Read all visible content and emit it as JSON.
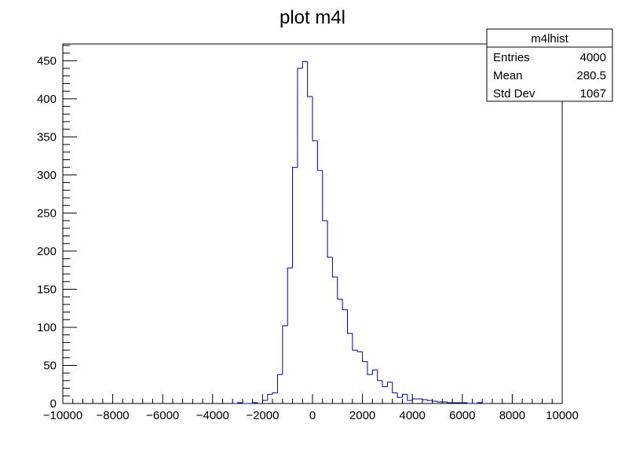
{
  "chart_data": {
    "type": "bar",
    "style": "step-histogram",
    "title": "plot m4l",
    "xlabel": "",
    "ylabel": "",
    "xlim": [
      -10000,
      10000
    ],
    "ylim": [
      0,
      472
    ],
    "bin_width": 200,
    "line_color": "#000099",
    "grid": false,
    "legend": "none",
    "x_ticks": [
      -10000,
      -8000,
      -6000,
      -4000,
      -2000,
      0,
      2000,
      4000,
      6000,
      8000,
      10000
    ],
    "x_tick_labels": [
      "−10000",
      "−8000",
      "−6000",
      "−4000",
      "−2000",
      "0",
      "2000",
      "4000",
      "6000",
      "8000",
      "10000"
    ],
    "y_ticks": [
      0,
      50,
      100,
      150,
      200,
      250,
      300,
      350,
      400,
      450
    ],
    "y_tick_labels": [
      "0",
      "50",
      "100",
      "150",
      "200",
      "250",
      "300",
      "350",
      "400",
      "450"
    ],
    "x": [
      -3100,
      -2900,
      -2700,
      -2500,
      -2300,
      -2100,
      -1900,
      -1700,
      -1500,
      -1300,
      -1100,
      -900,
      -700,
      -500,
      -300,
      -100,
      100,
      300,
      500,
      700,
      900,
      1100,
      1300,
      1500,
      1700,
      1900,
      2100,
      2300,
      2500,
      2700,
      2900,
      3100,
      3300,
      3500,
      3700,
      3900,
      4100,
      4300,
      4500,
      4700,
      4900,
      5100,
      5300,
      5500,
      5700,
      5900,
      6100,
      6300,
      6500,
      6700,
      6900
    ],
    "values": [
      0,
      1,
      0,
      0,
      1,
      0,
      4,
      12,
      14,
      38,
      102,
      178,
      310,
      440,
      449,
      403,
      345,
      306,
      240,
      192,
      166,
      137,
      123,
      92,
      70,
      68,
      55,
      38,
      44,
      30,
      22,
      28,
      14,
      8,
      12,
      4,
      6,
      6,
      5,
      4,
      3,
      2,
      2,
      1,
      1,
      1,
      1,
      0,
      0,
      1,
      0
    ]
  },
  "stats_box": {
    "title": "m4lhist",
    "rows": [
      {
        "label": "Entries",
        "value": "4000"
      },
      {
        "label": "Mean",
        "value": "280.5"
      },
      {
        "label": "Std Dev",
        "value": "1067"
      }
    ]
  }
}
